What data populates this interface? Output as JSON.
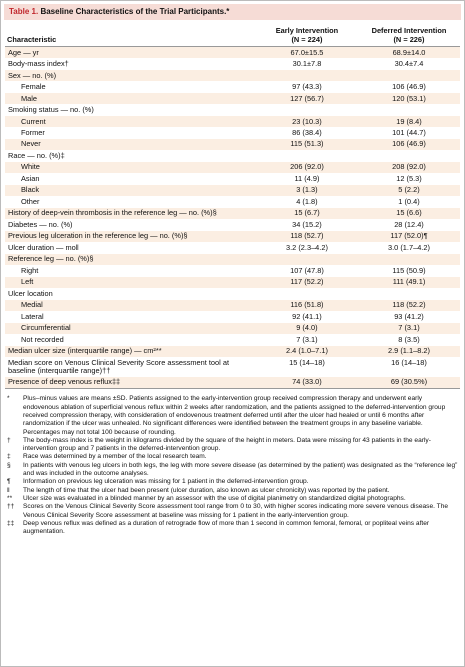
{
  "table": {
    "label": "Table 1.",
    "title": "Baseline Characteristics of the Trial Participants.*",
    "columns": [
      {
        "name": "Characteristic"
      },
      {
        "name": "Early Intervention",
        "n": "(N = 224)"
      },
      {
        "name": "Deferred Intervention",
        "n": "(N = 226)"
      }
    ],
    "rows": [
      {
        "label": "Age — yr",
        "values": [
          "67.0±15.5",
          "68.9±14.0"
        ]
      },
      {
        "label": "Body-mass index†",
        "values": [
          "30.1±7.8",
          "30.4±7.4"
        ]
      },
      {
        "label": "Sex — no. (%)",
        "items": [
          {
            "label": "Female",
            "values": [
              "97 (43.3)",
              "106 (46.9)"
            ]
          },
          {
            "label": "Male",
            "values": [
              "127 (56.7)",
              "120 (53.1)"
            ]
          }
        ]
      },
      {
        "label": "Smoking status — no. (%)",
        "items": [
          {
            "label": "Current",
            "values": [
              "23 (10.3)",
              "19 (8.4)"
            ]
          },
          {
            "label": "Former",
            "values": [
              "86 (38.4)",
              "101 (44.7)"
            ]
          },
          {
            "label": "Never",
            "values": [
              "115 (51.3)",
              "106 (46.9)"
            ]
          }
        ]
      },
      {
        "label": "Race — no. (%)‡",
        "items": [
          {
            "label": "White",
            "values": [
              "206 (92.0)",
              "208 (92.0)"
            ]
          },
          {
            "label": "Asian",
            "values": [
              "11 (4.9)",
              "12 (5.3)"
            ]
          },
          {
            "label": "Black",
            "values": [
              "3 (1.3)",
              "5 (2.2)"
            ]
          },
          {
            "label": "Other",
            "values": [
              "4 (1.8)",
              "1 (0.4)"
            ]
          }
        ]
      },
      {
        "label": "History of deep-vein thrombosis in the reference leg — no. (%)§",
        "values": [
          "15 (6.7)",
          "15 (6.6)"
        ]
      },
      {
        "label": "Diabetes — no. (%)",
        "values": [
          "34 (15.2)",
          "28 (12.4)"
        ]
      },
      {
        "label": "Previous leg ulceration in the reference leg — no. (%)§",
        "values": [
          "118 (52.7)",
          "117 (52.0)¶"
        ]
      },
      {
        "label": "Ulcer duration — mo‖",
        "values": [
          "3.2 (2.3–4.2)",
          "3.0 (1.7–4.2)"
        ]
      },
      {
        "label": "Reference leg — no. (%)§",
        "items": [
          {
            "label": "Right",
            "values": [
              "107 (47.8)",
              "115 (50.9)"
            ]
          },
          {
            "label": "Left",
            "values": [
              "117 (52.2)",
              "111 (49.1)"
            ]
          }
        ]
      },
      {
        "label": "Ulcer location",
        "items": [
          {
            "label": "Medial",
            "values": [
              "116 (51.8)",
              "118 (52.2)"
            ]
          },
          {
            "label": "Lateral",
            "values": [
              "92 (41.1)",
              "93 (41.2)"
            ]
          },
          {
            "label": "Circumferential",
            "values": [
              "9 (4.0)",
              "7 (3.1)"
            ]
          },
          {
            "label": "Not recorded",
            "values": [
              "7 (3.1)",
              "8 (3.5)"
            ]
          }
        ]
      },
      {
        "label": "Median ulcer size (interquartile range) — cm²**",
        "values": [
          "2.4 (1.0–7.1)",
          "2.9 (1.1–8.2)"
        ]
      },
      {
        "label": "Median score on Venous Clinical Severity Score assessment tool at baseline (interquartile range)††",
        "values": [
          "15 (14–18)",
          "16 (14–18)"
        ]
      },
      {
        "label": "Presence of deep venous reflux‡‡",
        "values": [
          "74 (33.0)",
          "69 (30.5%)"
        ]
      }
    ],
    "footnotes": [
      {
        "symbol": "*",
        "text": "Plus–minus values are means ±SD. Patients assigned to the early-intervention group received compression therapy and underwent early endovenous ablation of superficial venous reflux within 2 weeks after randomization, and the patients assigned to the deferred-intervention group received compression therapy, with consideration of endovenous treatment deferred until after the ulcer had healed or until 6 months after randomization if the ulcer was unhealed. No significant differences were identified between the treatment groups in any baseline variable. Percentages may not total 100 because of rounding."
      },
      {
        "symbol": "†",
        "text": "The body-mass index is the weight in kilograms divided by the square of the height in meters. Data were missing for 43 patients in the early-intervention group and 7 patients in the deferred-intervention group."
      },
      {
        "symbol": "‡",
        "text": "Race was determined by a member of the local research team."
      },
      {
        "symbol": "§",
        "text": "In patients with venous leg ulcers in both legs, the leg with more severe disease (as determined by the patient) was designated as the “reference leg” and was included in the outcome analyses."
      },
      {
        "symbol": "¶",
        "text": "Information on previous leg ulceration was missing for 1 patient in the deferred-intervention group."
      },
      {
        "symbol": "‖",
        "text": "The length of time that the ulcer had been present (ulcer duration, also known as ulcer chronicity) was reported by the patient."
      },
      {
        "symbol": "**",
        "text": "Ulcer size was evaluated in a blinded manner by an assessor with the use of digital planimetry on standardized digital photographs."
      },
      {
        "symbol": "††",
        "text": "Scores on the Venous Clinical Severity Score assessment tool range from 0 to 30, with higher scores indicating more severe venous disease. The Venous Clinical Severity Score assessment at baseline was missing for 1 patient in the early-intervention group."
      },
      {
        "symbol": "‡‡",
        "text": "Deep venous reflux was defined as a duration of retrograde flow of more than 1 second in common femoral, femoral, or popliteal veins after augmentation."
      }
    ]
  }
}
